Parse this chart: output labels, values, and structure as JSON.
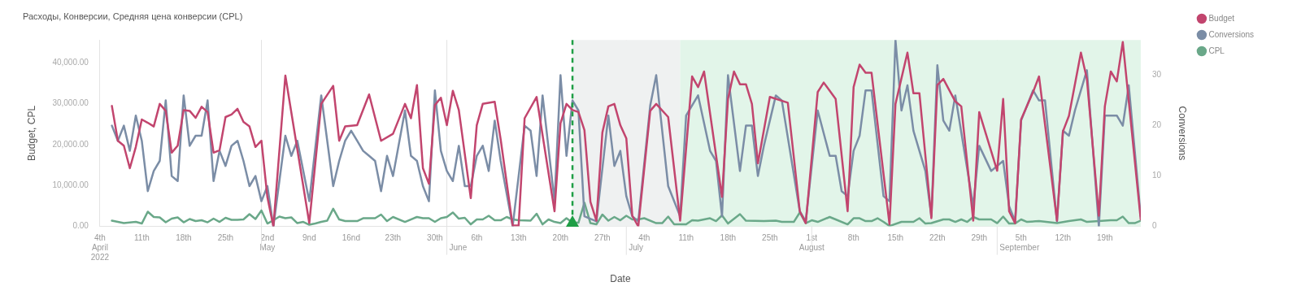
{
  "chart_data": {
    "type": "line",
    "title": "Расходы, Конверсии, Средняя цена конверсии (CPL)",
    "xlabel": "Date",
    "ylabel": "Budget, CPL",
    "y2label": "Conversions",
    "xlim": [
      "2022-04-04",
      "2022-09-25"
    ],
    "xticks": [
      {
        "value": "2022-04-04",
        "label": "4th\nApril\n2022"
      },
      {
        "value": "2022-04-11",
        "label": "11th"
      },
      {
        "value": "2022-04-18",
        "label": "18th"
      },
      {
        "value": "2022-04-25",
        "label": "25th"
      },
      {
        "value": "2022-05-02",
        "label": "2nd\nMay"
      },
      {
        "value": "2022-05-09",
        "label": "9nd"
      },
      {
        "value": "2022-05-16",
        "label": "16nd"
      },
      {
        "value": "2022-05-23",
        "label": "23th"
      },
      {
        "value": "2022-05-30",
        "label": "30th"
      },
      {
        "value": "2022-06-06",
        "label": "6th"
      },
      {
        "value": "2022-06-13",
        "label": "13th"
      },
      {
        "value": "2022-06-20",
        "label": "20th"
      },
      {
        "value": "2022-06-27",
        "label": "27th"
      },
      {
        "value": "2022-07-04",
        "label": "4th"
      },
      {
        "value": "2022-07-11",
        "label": "11th"
      },
      {
        "value": "2022-07-18",
        "label": "18th"
      },
      {
        "value": "2022-07-25",
        "label": "25th"
      },
      {
        "value": "2022-08-01",
        "label": "1st\nAugust"
      },
      {
        "value": "2022-08-08",
        "label": "8th"
      },
      {
        "value": "2022-08-15",
        "label": "15th"
      },
      {
        "value": "2022-08-22",
        "label": "22th"
      },
      {
        "value": "2022-08-29",
        "label": "29th"
      },
      {
        "value": "2022-09-05",
        "label": "5th"
      },
      {
        "value": "2022-09-12",
        "label": "12th"
      },
      {
        "value": "2022-09-19",
        "label": "19th"
      }
    ],
    "ylim": [
      0,
      45500
    ],
    "yticks": [
      {
        "value": 0,
        "label": "0.00"
      },
      {
        "value": 10000,
        "label": "10,000.00"
      },
      {
        "value": 20000,
        "label": "20,000.00"
      },
      {
        "value": 30000,
        "label": "30,000.00"
      },
      {
        "value": 40000,
        "label": "40,000.00"
      }
    ],
    "y2lim": [
      0,
      37
    ],
    "y2ticks": [
      0,
      10,
      20,
      30
    ],
    "legend": "top right",
    "marker": "none",
    "line_style": "solid",
    "bands": [
      {
        "axis": "x",
        "from": "2022-06-22",
        "to": "2022-07-10",
        "color": "#eff1f1"
      },
      {
        "axis": "x",
        "from": "2022-07-10",
        "to": "2022-09-25",
        "color": "#e2f5e9"
      }
    ],
    "ref_lines": [
      {
        "axis": "x",
        "value": "2022-06-22",
        "color": "#1f9e45",
        "line_style": "dashed"
      },
      {
        "axis": "x",
        "value": "2022-05-01",
        "color": "#e2e2e2",
        "line_style": "solid"
      },
      {
        "axis": "x",
        "value": "2022-06-01",
        "label": "June",
        "color": "#e2e2e2",
        "line_style": "solid"
      },
      {
        "axis": "x",
        "value": "2022-07-01",
        "label": "July",
        "color": "#e2e2e2",
        "line_style": "solid"
      },
      {
        "axis": "x",
        "value": "2022-08-01",
        "color": "#e2e2e2",
        "line_style": "solid"
      },
      {
        "axis": "x",
        "value": "2022-09-01",
        "label": "September",
        "color": "#e2e2e2",
        "line_style": "solid"
      }
    ],
    "series": [
      {
        "name": "Budget",
        "color": "#c2456e",
        "x": [
          "2022-04-06",
          "2022-04-07",
          "2022-04-08",
          "2022-04-09",
          "2022-04-10",
          "2022-04-11",
          "2022-04-12",
          "2022-04-13",
          "2022-04-14",
          "2022-04-15",
          "2022-04-16",
          "2022-04-17",
          "2022-04-18",
          "2022-04-19",
          "2022-04-20",
          "2022-04-21",
          "2022-04-22",
          "2022-04-23",
          "2022-04-24",
          "2022-04-25",
          "2022-04-26",
          "2022-04-27",
          "2022-04-28",
          "2022-04-29",
          "2022-04-30",
          "2022-05-01",
          "2022-05-02",
          "2022-05-03",
          "2022-05-05",
          "2022-05-09",
          "2022-05-11",
          "2022-05-13",
          "2022-05-14",
          "2022-05-15",
          "2022-05-17",
          "2022-05-19",
          "2022-05-21",
          "2022-05-23",
          "2022-05-25",
          "2022-05-26",
          "2022-05-27",
          "2022-05-28",
          "2022-05-29",
          "2022-05-30",
          "2022-05-31",
          "2022-06-01",
          "2022-06-02",
          "2022-06-03",
          "2022-06-05",
          "2022-06-06",
          "2022-06-07",
          "2022-06-09",
          "2022-06-10",
          "2022-06-12",
          "2022-06-13",
          "2022-06-14",
          "2022-06-16",
          "2022-06-19",
          "2022-06-20",
          "2022-06-21",
          "2022-06-22",
          "2022-06-23",
          "2022-06-24",
          "2022-06-25",
          "2022-06-26",
          "2022-06-27",
          "2022-06-28",
          "2022-06-29",
          "2022-06-30",
          "2022-07-01",
          "2022-07-02",
          "2022-07-03",
          "2022-07-05",
          "2022-07-06",
          "2022-07-08",
          "2022-07-10",
          "2022-07-12",
          "2022-07-13",
          "2022-07-14",
          "2022-07-17",
          "2022-07-18",
          "2022-07-19",
          "2022-07-20",
          "2022-07-21",
          "2022-07-22",
          "2022-07-23",
          "2022-07-25",
          "2022-07-28",
          "2022-07-30",
          "2022-07-31",
          "2022-08-02",
          "2022-08-03",
          "2022-08-05",
          "2022-08-07",
          "2022-08-08",
          "2022-08-09",
          "2022-08-10",
          "2022-08-11",
          "2022-08-14",
          "2022-08-15",
          "2022-08-17",
          "2022-08-18",
          "2022-08-19",
          "2022-08-21",
          "2022-08-22",
          "2022-08-23",
          "2022-08-25",
          "2022-08-26",
          "2022-08-28",
          "2022-08-29",
          "2022-09-01",
          "2022-09-02",
          "2022-09-03",
          "2022-09-04",
          "2022-09-05",
          "2022-09-07",
          "2022-09-08",
          "2022-09-11",
          "2022-09-12",
          "2022-09-13",
          "2022-09-15",
          "2022-09-16",
          "2022-09-18",
          "2022-09-19",
          "2022-09-20",
          "2022-09-21",
          "2022-09-22",
          "2022-09-25"
        ],
        "values": [
          29400,
          20900,
          19700,
          14200,
          19400,
          26100,
          25300,
          24400,
          29900,
          28200,
          18000,
          19700,
          28400,
          28200,
          26500,
          29200,
          27900,
          18000,
          18600,
          26700,
          27300,
          28700,
          25500,
          24400,
          19400,
          20900,
          7100,
          0,
          36800,
          800,
          29900,
          34300,
          20900,
          24400,
          24700,
          32200,
          20900,
          22600,
          29900,
          26400,
          34500,
          14200,
          10400,
          29600,
          31400,
          24700,
          33100,
          28400,
          6900,
          24700,
          29900,
          30400,
          21200,
          200,
          200,
          26400,
          31600,
          3700,
          25200,
          29900,
          28400,
          27900,
          23500,
          6000,
          1400,
          22900,
          29300,
          29900,
          24700,
          21500,
          2600,
          0,
          28200,
          29900,
          26700,
          1400,
          36600,
          34000,
          37800,
          7200,
          31100,
          37800,
          34700,
          34700,
          29900,
          15400,
          31600,
          30200,
          3700,
          800,
          32800,
          35100,
          31100,
          3700,
          34000,
          39500,
          37500,
          37500,
          500,
          29900,
          42400,
          32500,
          32500,
          2000,
          34500,
          36000,
          30500,
          29300,
          1400,
          27900,
          13600,
          31100,
          3700,
          800,
          26100,
          32800,
          36600,
          1400,
          23200,
          27000,
          42400,
          36000,
          2600,
          29300,
          37800,
          35400,
          45000,
          1700
        ]
      },
      {
        "name": "Conversions",
        "color": "#7b8da6",
        "axis": "y2",
        "x": [
          "2022-04-06",
          "2022-04-07",
          "2022-04-08",
          "2022-04-09",
          "2022-04-10",
          "2022-04-11",
          "2022-04-12",
          "2022-04-13",
          "2022-04-14",
          "2022-04-15",
          "2022-04-16",
          "2022-04-17",
          "2022-04-18",
          "2022-04-19",
          "2022-04-20",
          "2022-04-21",
          "2022-04-22",
          "2022-04-23",
          "2022-04-24",
          "2022-04-25",
          "2022-04-26",
          "2022-04-27",
          "2022-04-28",
          "2022-04-29",
          "2022-04-30",
          "2022-05-01",
          "2022-05-02",
          "2022-05-03",
          "2022-05-05",
          "2022-05-06",
          "2022-05-07",
          "2022-05-09",
          "2022-05-11",
          "2022-05-13",
          "2022-05-14",
          "2022-05-15",
          "2022-05-16",
          "2022-05-17",
          "2022-05-18",
          "2022-05-19",
          "2022-05-20",
          "2022-05-21",
          "2022-05-22",
          "2022-05-23",
          "2022-05-25",
          "2022-05-26",
          "2022-05-27",
          "2022-05-28",
          "2022-05-29",
          "2022-05-30",
          "2022-05-31",
          "2022-06-01",
          "2022-06-02",
          "2022-06-03",
          "2022-06-04",
          "2022-06-05",
          "2022-06-06",
          "2022-06-07",
          "2022-06-08",
          "2022-06-09",
          "2022-06-10",
          "2022-06-12",
          "2022-06-14",
          "2022-06-15",
          "2022-06-16",
          "2022-06-17",
          "2022-06-19",
          "2022-06-20",
          "2022-06-21",
          "2022-06-22",
          "2022-06-23",
          "2022-06-24",
          "2022-06-26",
          "2022-06-28",
          "2022-06-29",
          "2022-06-30",
          "2022-07-01",
          "2022-07-02",
          "2022-07-03",
          "2022-07-05",
          "2022-07-06",
          "2022-07-08",
          "2022-07-10",
          "2022-07-11",
          "2022-07-13",
          "2022-07-15",
          "2022-07-16",
          "2022-07-17",
          "2022-07-18",
          "2022-07-20",
          "2022-07-21",
          "2022-07-22",
          "2022-07-23",
          "2022-07-24",
          "2022-07-26",
          "2022-07-27",
          "2022-07-30",
          "2022-07-31",
          "2022-08-02",
          "2022-08-04",
          "2022-08-05",
          "2022-08-06",
          "2022-08-07",
          "2022-08-08",
          "2022-08-09",
          "2022-08-10",
          "2022-08-11",
          "2022-08-13",
          "2022-08-14",
          "2022-08-15",
          "2022-08-16",
          "2022-08-17",
          "2022-08-18",
          "2022-08-20",
          "2022-08-21",
          "2022-08-22",
          "2022-08-23",
          "2022-08-24",
          "2022-08-25",
          "2022-08-28",
          "2022-08-29",
          "2022-08-31",
          "2022-09-02",
          "2022-09-03",
          "2022-09-04",
          "2022-09-05",
          "2022-09-07",
          "2022-09-08",
          "2022-09-09",
          "2022-09-11",
          "2022-09-12",
          "2022-09-13",
          "2022-09-14",
          "2022-09-16",
          "2022-09-18",
          "2022-09-19",
          "2022-09-21",
          "2022-09-22",
          "2022-09-23",
          "2022-09-25"
        ],
        "values": [
          20,
          17,
          20,
          15,
          22,
          17,
          7,
          11,
          13,
          25,
          10,
          9,
          26,
          16,
          18,
          18,
          25,
          9,
          15,
          12,
          16,
          17,
          13,
          8,
          10,
          5,
          8,
          0,
          18,
          14,
          17,
          5,
          26,
          8,
          13,
          17,
          19,
          17,
          15,
          14,
          13,
          7,
          14,
          10,
          23,
          14,
          13,
          8,
          5,
          27,
          15,
          11,
          9,
          16,
          8,
          8,
          14,
          16,
          11,
          21,
          13,
          0,
          20,
          19,
          10,
          26,
          5,
          30,
          14,
          25,
          23,
          2,
          1,
          22,
          12,
          15,
          6,
          2,
          1,
          24,
          30,
          8,
          2,
          22,
          26,
          15,
          13,
          2,
          30,
          11,
          20,
          20,
          10,
          16,
          26,
          25,
          3,
          1,
          23,
          14,
          14,
          7,
          6,
          15,
          18,
          27,
          27,
          6,
          5,
          37,
          23,
          28,
          19,
          11,
          2,
          32,
          21,
          19,
          26,
          4,
          16,
          11,
          13,
          4,
          1,
          21,
          27,
          25,
          25,
          1,
          19,
          18,
          23,
          31,
          0,
          22,
          22,
          20,
          28,
          2
        ]
      },
      {
        "name": "CPL",
        "color": "#6aa889",
        "x": [
          "2022-04-06",
          "2022-04-08",
          "2022-04-10",
          "2022-04-11",
          "2022-04-12",
          "2022-04-13",
          "2022-04-14",
          "2022-04-15",
          "2022-04-16",
          "2022-04-17",
          "2022-04-18",
          "2022-04-19",
          "2022-04-20",
          "2022-04-21",
          "2022-04-22",
          "2022-04-23",
          "2022-04-24",
          "2022-04-25",
          "2022-04-26",
          "2022-04-27",
          "2022-04-28",
          "2022-04-29",
          "2022-04-30",
          "2022-05-01",
          "2022-05-02",
          "2022-05-03",
          "2022-05-04",
          "2022-05-05",
          "2022-05-06",
          "2022-05-07",
          "2022-05-08",
          "2022-05-09",
          "2022-05-10",
          "2022-05-11",
          "2022-05-12",
          "2022-05-13",
          "2022-05-14",
          "2022-05-15",
          "2022-05-17",
          "2022-05-18",
          "2022-05-20",
          "2022-05-21",
          "2022-05-22",
          "2022-05-23",
          "2022-05-25",
          "2022-05-27",
          "2022-05-28",
          "2022-05-29",
          "2022-05-30",
          "2022-05-31",
          "2022-06-01",
          "2022-06-02",
          "2022-06-03",
          "2022-06-04",
          "2022-06-05",
          "2022-06-06",
          "2022-06-07",
          "2022-06-08",
          "2022-06-09",
          "2022-06-10",
          "2022-06-11",
          "2022-06-12",
          "2022-06-13",
          "2022-06-15",
          "2022-06-16",
          "2022-06-17",
          "2022-06-18",
          "2022-06-19",
          "2022-06-20",
          "2022-06-21",
          "2022-06-22",
          "2022-06-23",
          "2022-06-24",
          "2022-06-25",
          "2022-06-26",
          "2022-06-27",
          "2022-06-28",
          "2022-06-29",
          "2022-06-30",
          "2022-07-01",
          "2022-07-02",
          "2022-07-03",
          "2022-07-04",
          "2022-07-06",
          "2022-07-07",
          "2022-07-08",
          "2022-07-09",
          "2022-07-11",
          "2022-07-12",
          "2022-07-13",
          "2022-07-15",
          "2022-07-16",
          "2022-07-17",
          "2022-07-18",
          "2022-07-20",
          "2022-07-21",
          "2022-07-24",
          "2022-07-26",
          "2022-07-27",
          "2022-07-29",
          "2022-07-30",
          "2022-07-31",
          "2022-08-01",
          "2022-08-02",
          "2022-08-04",
          "2022-08-05",
          "2022-08-07",
          "2022-08-08",
          "2022-08-09",
          "2022-08-10",
          "2022-08-11",
          "2022-08-12",
          "2022-08-13",
          "2022-08-14",
          "2022-08-16",
          "2022-08-18",
          "2022-08-19",
          "2022-08-20",
          "2022-08-21",
          "2022-08-23",
          "2022-08-24",
          "2022-08-25",
          "2022-08-26",
          "2022-08-27",
          "2022-08-28",
          "2022-08-29",
          "2022-08-31",
          "2022-09-01",
          "2022-09-02",
          "2022-09-03",
          "2022-09-04",
          "2022-09-05",
          "2022-09-06",
          "2022-09-08",
          "2022-09-11",
          "2022-09-13",
          "2022-09-14",
          "2022-09-15",
          "2022-09-16",
          "2022-09-18",
          "2022-09-20",
          "2022-09-21",
          "2022-09-22",
          "2022-09-23",
          "2022-09-24",
          "2022-09-25"
        ],
        "values": [
          1400,
          800,
          1100,
          700,
          3600,
          2300,
          2200,
          1000,
          1900,
          2200,
          1000,
          1800,
          1300,
          1500,
          1000,
          1900,
          1100,
          2100,
          1600,
          1600,
          1700,
          3000,
          1800,
          3900,
          700,
          1500,
          2400,
          2000,
          2200,
          800,
          1100,
          400,
          700,
          1100,
          1400,
          4300,
          1700,
          1300,
          1300,
          2000,
          2000,
          2900,
          1300,
          2300,
          1100,
          2300,
          2000,
          2000,
          1100,
          2000,
          2300,
          3400,
          1900,
          2100,
          500,
          1700,
          1700,
          2600,
          1500,
          1500,
          2300,
          1700,
          1500,
          1400,
          3100,
          500,
          1700,
          1100,
          800,
          2000,
          900,
          900,
          5800,
          800,
          500,
          2900,
          1400,
          2300,
          1500,
          2600,
          1700,
          1700,
          2000,
          800,
          800,
          2400,
          500,
          500,
          1500,
          1400,
          2000,
          1300,
          2700,
          700,
          3000,
          1400,
          1300,
          1400,
          1100,
          1100,
          3400,
          800,
          1500,
          1100,
          2300,
          1700,
          500,
          2000,
          2000,
          1300,
          1300,
          2000,
          1100,
          100,
          1100,
          1100,
          2000,
          700,
          800,
          1700,
          1700,
          1100,
          1700,
          1100,
          2300,
          1700,
          1700,
          800,
          2400,
          700,
          700,
          1700,
          1100,
          1300,
          800,
          1300,
          1500,
          1700,
          1100,
          1300,
          1500,
          1500,
          2400,
          800,
          800,
          1400
        ]
      }
    ]
  }
}
